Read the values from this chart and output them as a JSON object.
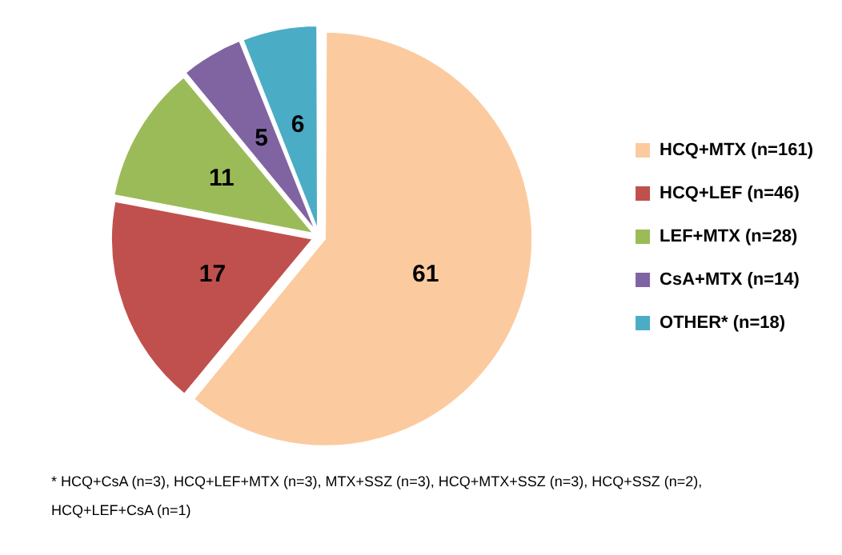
{
  "chart_data": {
    "type": "pie",
    "categories": [
      "HCQ+MTX (n=161)",
      "HCQ+LEF (n=46)",
      "LEF+MTX (n=28)",
      "CsA+MTX (n=14)",
      "OTHER* (n=18)"
    ],
    "values": [
      61,
      17,
      11,
      5,
      6
    ],
    "colors": [
      "#fbcb9f",
      "#c0504d",
      "#9bbb59",
      "#8064a2",
      "#4bacc6"
    ],
    "data_labels": true,
    "legend": "right",
    "annotations": [
      "* HCQ+CsA (n=3), HCQ+LEF+MTX (n=3), MTX+SSZ (n=3), HCQ+MTX+SSZ (n=3), HCQ+SSZ (n=2), HCQ+LEF+CsA (n=1)"
    ]
  }
}
